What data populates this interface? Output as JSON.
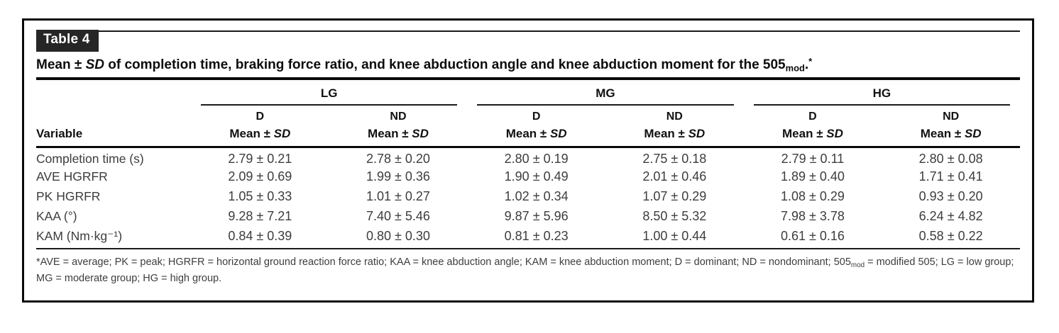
{
  "panel": {
    "label": "Table 4",
    "title": {
      "prefix": "Mean ± ",
      "sd": "SD",
      "body": " of completion time, braking force ratio, and knee abduction angle and knee abduction moment for the 505",
      "subscript": "mod",
      "period": ".",
      "asterisk": "*"
    }
  },
  "table": {
    "variable_header": "Variable",
    "groups": [
      {
        "label": "LG"
      },
      {
        "label": "MG"
      },
      {
        "label": "HG"
      }
    ],
    "d_label": "D",
    "nd_label": "ND",
    "mean_prefix": "Mean ± ",
    "sd_label": "SD",
    "rows": [
      {
        "variable": "Completion time (s)",
        "values": [
          "2.79 ± 0.21",
          "2.78 ± 0.20",
          "2.80 ± 0.19",
          "2.75 ± 0.18",
          "2.79 ± 0.11",
          "2.80 ± 0.08"
        ]
      },
      {
        "variable": "AVE HGRFR",
        "values": [
          "2.09 ± 0.69",
          "1.99 ± 0.36",
          "1.90 ± 0.49",
          "2.01 ± 0.46",
          "1.89 ± 0.40",
          "1.71 ± 0.41"
        ]
      },
      {
        "variable": "PK HGRFR",
        "values": [
          "1.05 ± 0.33",
          "1.01 ± 0.27",
          "1.02 ± 0.34",
          "1.07 ± 0.29",
          "1.08 ± 0.29",
          "0.93 ± 0.20"
        ]
      },
      {
        "variable": "KAA (°)",
        "values": [
          "9.28 ± 7.21",
          "7.40 ± 5.46",
          "9.87 ± 5.96",
          "8.50 ± 5.32",
          "7.98 ± 3.78",
          "6.24 ± 4.82"
        ]
      },
      {
        "variable": "KAM (Nm·kg⁻¹)",
        "values": [
          "0.84 ± 0.39",
          "0.80 ± 0.30",
          "0.81 ± 0.23",
          "1.00 ± 0.44",
          "0.61 ± 0.16",
          "0.58 ± 0.22"
        ]
      }
    ]
  },
  "footnote": {
    "prefix": "*AVE = average; PK = peak; HGRFR = horizontal ground reaction force ratio; KAA = knee abduction angle; KAM = knee abduction moment; D = dominant; ND = nondominant; 505",
    "subscript": "mod",
    "suffix": " = modified 505; LG = low group; MG = moderate group; HG = high group."
  },
  "colors": {
    "label_background": "#262626",
    "rule": "#0a0a0a",
    "body_text": "#3d3d3d"
  }
}
